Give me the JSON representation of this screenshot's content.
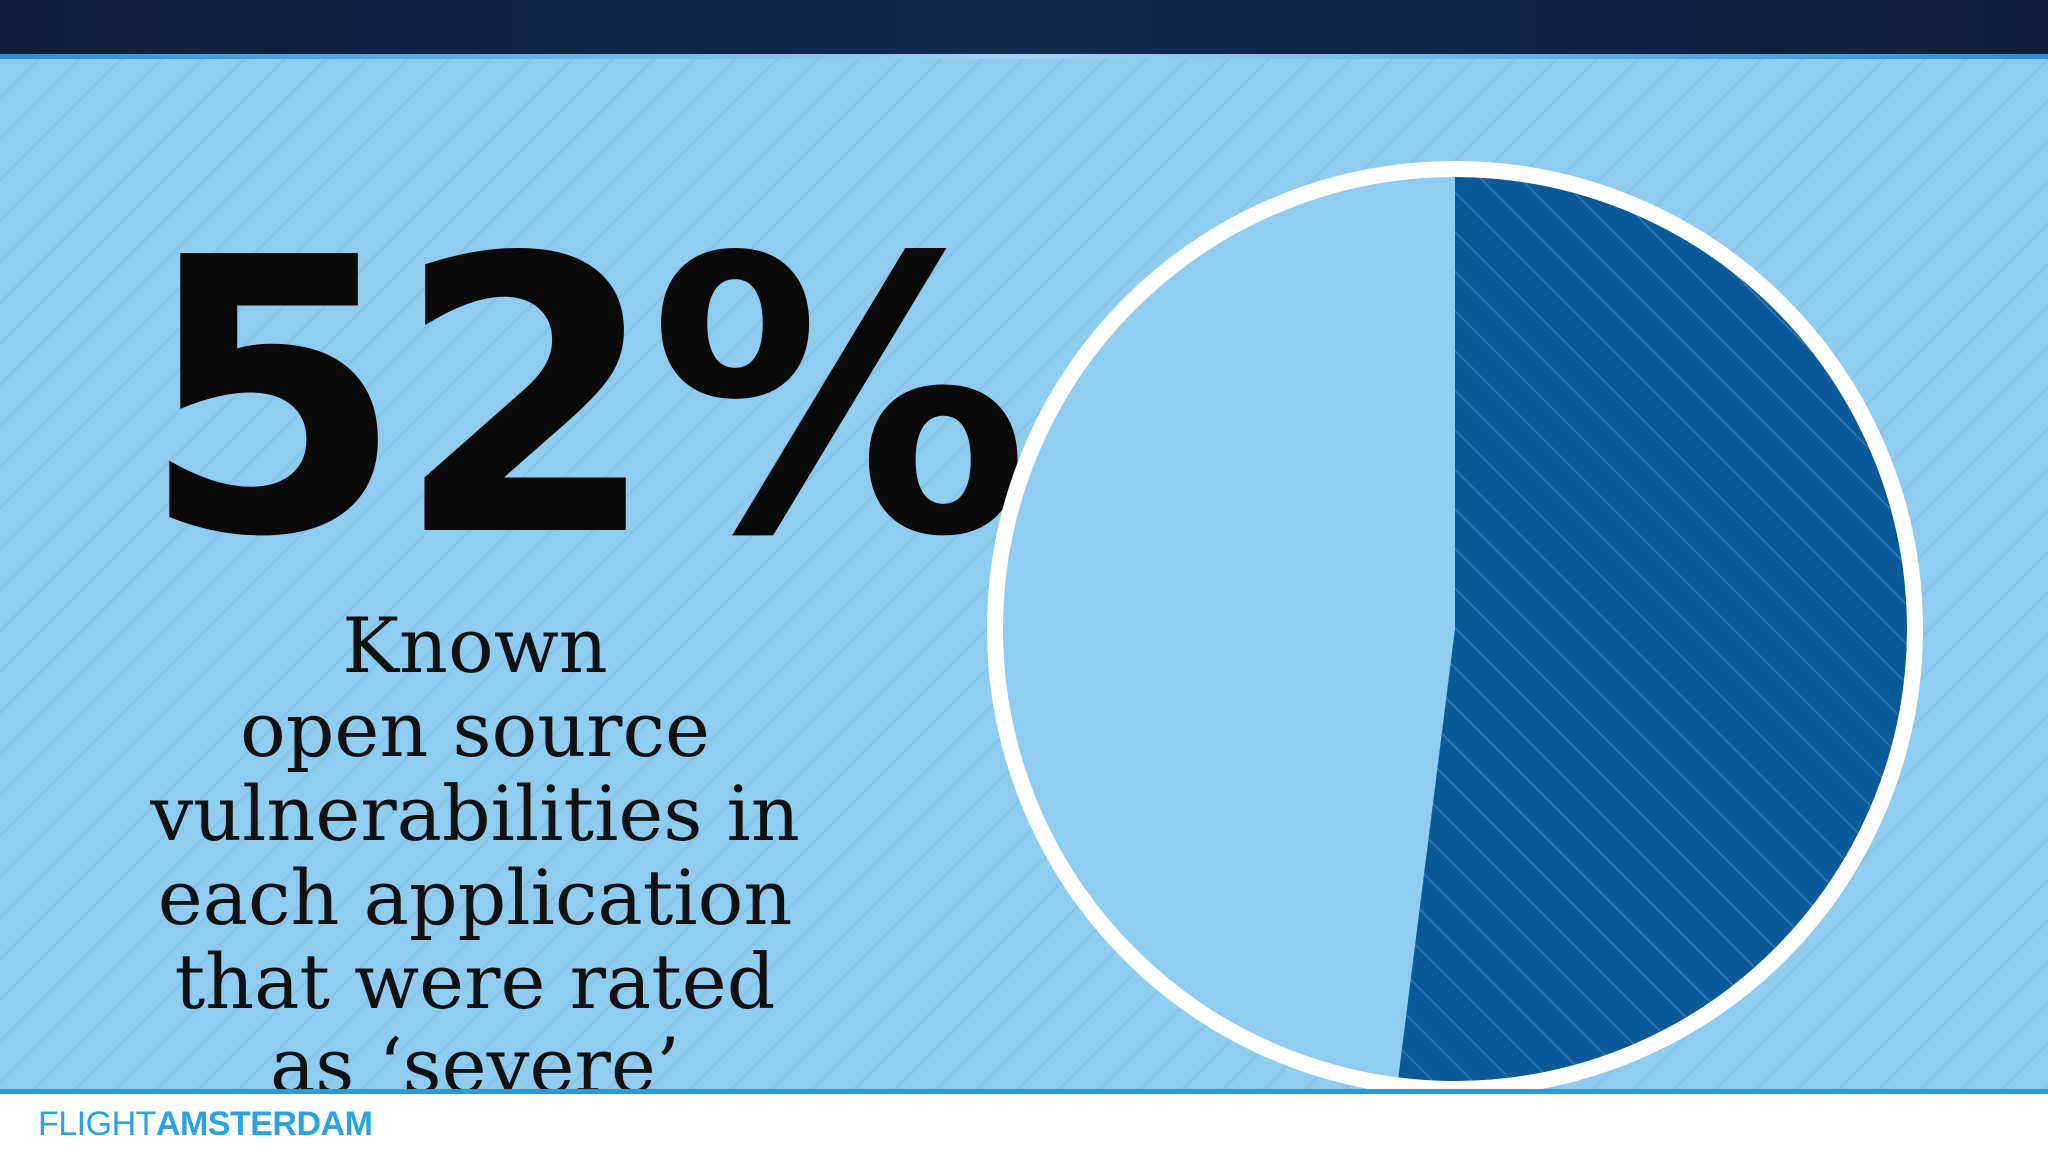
{
  "headline": {
    "stat": "52%"
  },
  "caption": {
    "lines": [
      "Known",
      "open source",
      "vulnerabilities in",
      "each application",
      "that were rated",
      "as ‘severe’"
    ]
  },
  "pie": {
    "value_fraction": 0.52,
    "colors": {
      "slice": "#0a5a9a",
      "remainder": "#8fcdf0",
      "outline": "#ffffff"
    }
  },
  "footer": {
    "brand_light": "FLIGHT",
    "brand_bold": "AMSTERDAM",
    "color": "#2aa3e6"
  }
}
